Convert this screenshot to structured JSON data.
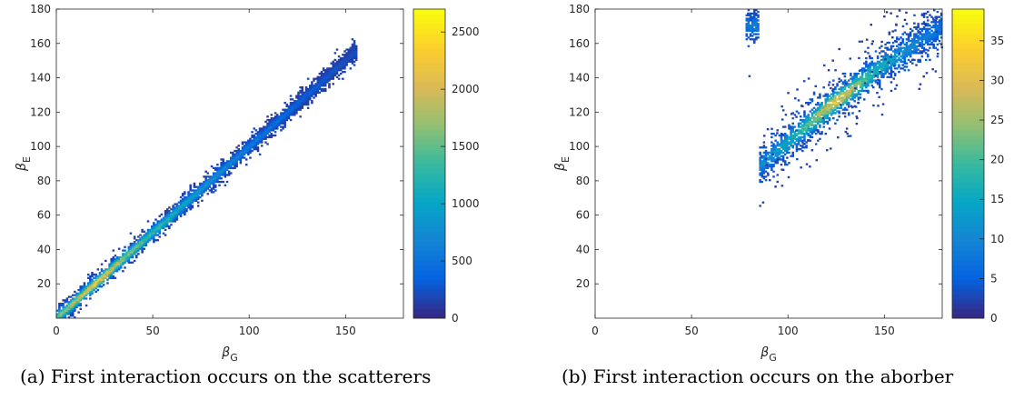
{
  "figure": {
    "captions": [
      "(a) First interaction occurs on the scatterers",
      "(b) First interaction occurs on the aborber"
    ]
  },
  "chart_data": [
    {
      "type": "heatmap",
      "xlabel": "βG",
      "ylabel": "βE",
      "xlim": [
        0,
        180
      ],
      "ylim": [
        0,
        180
      ],
      "xticks": [
        0,
        50,
        100,
        150
      ],
      "yticks": [
        20,
        40,
        60,
        80,
        100,
        120,
        140,
        160,
        180
      ],
      "colorbar": {
        "range": [
          0,
          2700
        ],
        "ticks": [
          0,
          500,
          1000,
          1500,
          2000,
          2500
        ],
        "colormap": "parula"
      },
      "bin_width": 1,
      "distribution": {
        "shape": "narrow band along diagonal",
        "ridge": [
          [
            0,
            0
          ],
          [
            50,
            50
          ],
          [
            100,
            100
          ],
          [
            154,
            154
          ]
        ],
        "band_halfwidth": 5,
        "x_extent": [
          0,
          156
        ],
        "peak_count_near": [
          [
            20,
            20
          ],
          2600
        ],
        "background_count": 120
      }
    },
    {
      "type": "heatmap",
      "xlabel": "βG",
      "ylabel": "βE",
      "xlim": [
        0,
        180
      ],
      "ylim": [
        0,
        180
      ],
      "xticks": [
        0,
        50,
        100,
        150
      ],
      "yticks": [
        20,
        40,
        60,
        80,
        100,
        120,
        140,
        160,
        180
      ],
      "colorbar": {
        "range": [
          0,
          39
        ],
        "ticks": [
          0,
          5,
          10,
          15,
          20,
          25,
          30,
          35
        ],
        "colormap": "parula"
      },
      "bin_width": 1,
      "distribution": {
        "shape": "diffuse band along diagonal",
        "ridge": [
          [
            85,
            88
          ],
          [
            120,
            122
          ],
          [
            150,
            148
          ],
          [
            180,
            170
          ]
        ],
        "band_halfwidth": 9,
        "x_extent": [
          78,
          180
        ],
        "y_extent": [
          58,
          180
        ],
        "peak_count_near": [
          [
            125,
            125
          ],
          38
        ],
        "background_count": 3
      }
    }
  ]
}
